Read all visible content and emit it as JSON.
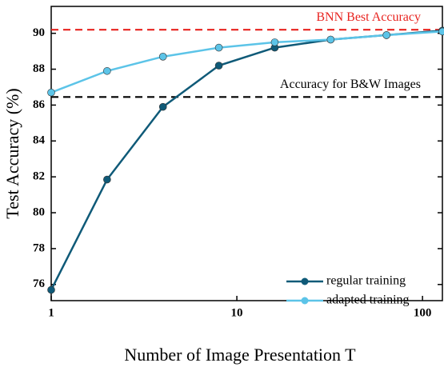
{
  "chart_data": {
    "type": "line",
    "x_label": "Number of Image Presentation T",
    "y_label": "Test Accuracy (%)",
    "x": [
      1,
      2,
      4,
      8,
      16,
      32,
      64,
      128
    ],
    "series": [
      {
        "name": "regular training",
        "color": "#0f5a78",
        "values": [
          75.7,
          81.85,
          85.9,
          88.2,
          89.2,
          89.65,
          89.9,
          90.15
        ]
      },
      {
        "name": "adapted training",
        "color": "#5cc4e8",
        "values": [
          86.7,
          87.9,
          88.7,
          89.2,
          89.5,
          89.65,
          89.9,
          90.1
        ]
      }
    ],
    "reference_lines": [
      {
        "label": "BNN Best Accuracy",
        "value": 90.2,
        "color": "#e8231f"
      },
      {
        "label": "Accuracy for B&W Images",
        "value": 86.45,
        "color": "#000000"
      }
    ],
    "xscale": "log",
    "xlim": [
      1,
      128
    ],
    "xticks": [
      1,
      10,
      100
    ],
    "ylim": [
      75.1,
      91.5
    ],
    "yticks": [
      76,
      78,
      80,
      82,
      84,
      86,
      88,
      90
    ],
    "legend": "lower right"
  }
}
